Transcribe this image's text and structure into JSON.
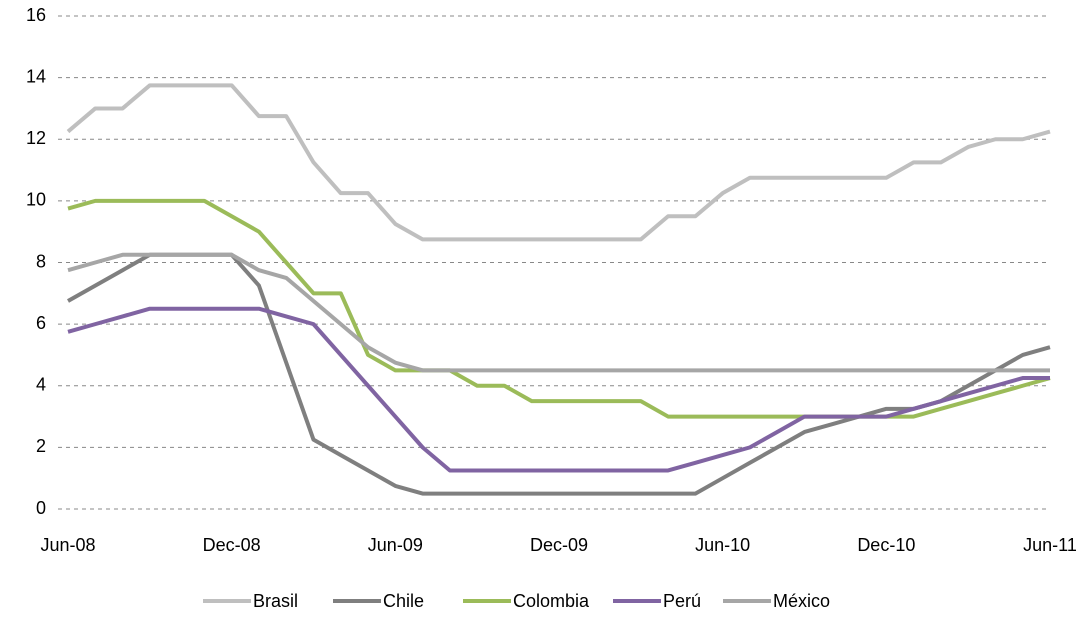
{
  "chart_data": {
    "type": "line",
    "categories": [
      "Jun-08",
      null,
      null,
      null,
      null,
      null,
      "Dec-08",
      null,
      null,
      null,
      null,
      null,
      "Jun-09",
      null,
      null,
      null,
      null,
      null,
      "Dec-09",
      null,
      null,
      null,
      null,
      null,
      "Jun-10",
      null,
      null,
      null,
      null,
      null,
      "Dec-10",
      null,
      null,
      null,
      null,
      null,
      "Jun-11"
    ],
    "series": [
      {
        "name": "Brasil",
        "color": "#bfbfbf",
        "values": [
          12.25,
          13,
          13,
          13.75,
          13.75,
          13.75,
          13.75,
          12.75,
          12.75,
          11.25,
          10.25,
          10.25,
          9.25,
          8.75,
          8.75,
          8.75,
          8.75,
          8.75,
          8.75,
          8.75,
          8.75,
          8.75,
          9.5,
          9.5,
          10.25,
          10.75,
          10.75,
          10.75,
          10.75,
          10.75,
          10.75,
          11.25,
          11.25,
          11.75,
          12,
          12,
          12.25
        ]
      },
      {
        "name": "Chile",
        "color": "#7f7f7f",
        "values": [
          6.75,
          7.25,
          7.75,
          8.25,
          8.25,
          8.25,
          8.25,
          7.25,
          4.75,
          2.25,
          1.75,
          1.25,
          0.75,
          0.5,
          0.5,
          0.5,
          0.5,
          0.5,
          0.5,
          0.5,
          0.5,
          0.5,
          0.5,
          0.5,
          1,
          1.5,
          2,
          2.5,
          2.75,
          3,
          3.25,
          3.25,
          3.5,
          4,
          4.5,
          5,
          5.25
        ]
      },
      {
        "name": "Colombia",
        "color": "#9bbb59",
        "values": [
          9.75,
          10,
          10,
          10,
          10,
          10,
          9.5,
          9,
          8,
          7,
          7,
          5,
          4.5,
          4.5,
          4.5,
          4,
          4,
          3.5,
          3.5,
          3.5,
          3.5,
          3.5,
          3,
          3,
          3,
          3,
          3,
          3,
          3,
          3,
          3,
          3,
          3.25,
          3.5,
          3.75,
          4,
          4.25
        ]
      },
      {
        "name": "Perú",
        "color": "#8064a2",
        "values": [
          5.75,
          6,
          6.25,
          6.5,
          6.5,
          6.5,
          6.5,
          6.5,
          6.25,
          6,
          5,
          4,
          3,
          2,
          1.25,
          1.25,
          1.25,
          1.25,
          1.25,
          1.25,
          1.25,
          1.25,
          1.25,
          1.5,
          1.75,
          2,
          2.5,
          3,
          3,
          3,
          3,
          3.25,
          3.5,
          3.75,
          4,
          4.25,
          4.25
        ]
      },
      {
        "name": "México",
        "color": "#a6a6a6",
        "values": [
          7.75,
          8,
          8.25,
          8.25,
          8.25,
          8.25,
          8.25,
          7.75,
          7.5,
          6.75,
          6,
          5.25,
          4.75,
          4.5,
          4.5,
          4.5,
          4.5,
          4.5,
          4.5,
          4.5,
          4.5,
          4.5,
          4.5,
          4.5,
          4.5,
          4.5,
          4.5,
          4.5,
          4.5,
          4.5,
          4.5,
          4.5,
          4.5,
          4.5,
          4.5,
          4.5,
          4.5
        ]
      }
    ],
    "ylim": [
      0,
      16
    ],
    "yticks": [
      0,
      2,
      4,
      6,
      8,
      10,
      12,
      14,
      16
    ],
    "grid": true,
    "legend": "bottom"
  }
}
